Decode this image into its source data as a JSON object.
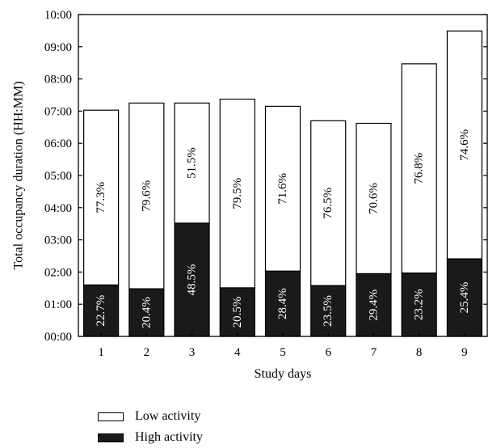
{
  "chart_data": {
    "type": "bar",
    "stacked": true,
    "categories": [
      "1",
      "2",
      "3",
      "4",
      "5",
      "6",
      "7",
      "8",
      "9"
    ],
    "xlabel": "Study days",
    "ylabel": "Total occupancy duration (HH:MM)",
    "ylim": [
      0,
      10
    ],
    "yticks": [
      "00:00",
      "01:00",
      "02:00",
      "03:00",
      "04:00",
      "05:00",
      "06:00",
      "07:00",
      "08:00",
      "09:00",
      "10:00"
    ],
    "series": [
      {
        "name": "High activity",
        "color": "#1a1a1a",
        "values": [
          1.6,
          1.48,
          3.52,
          1.51,
          2.03,
          1.58,
          1.95,
          1.97,
          2.41
        ],
        "labels": [
          "22.7%",
          "20.4%",
          "48.5%",
          "20.5%",
          "28.4%",
          "23.5%",
          "29.4%",
          "23.2%",
          "25.4%"
        ]
      },
      {
        "name": "Low activity",
        "color": "#ffffff",
        "values": [
          5.43,
          5.77,
          3.73,
          5.86,
          5.12,
          5.12,
          4.67,
          6.5,
          7.08
        ],
        "labels": [
          "77.3%",
          "79.6%",
          "51.5%",
          "79.5%",
          "71.6%",
          "76.5%",
          "70.6%",
          "76.8%",
          "74.6%"
        ]
      }
    ],
    "legend_position": "bottom-left"
  },
  "legend": {
    "low_label": "Low activity",
    "high_label": "High activity"
  }
}
